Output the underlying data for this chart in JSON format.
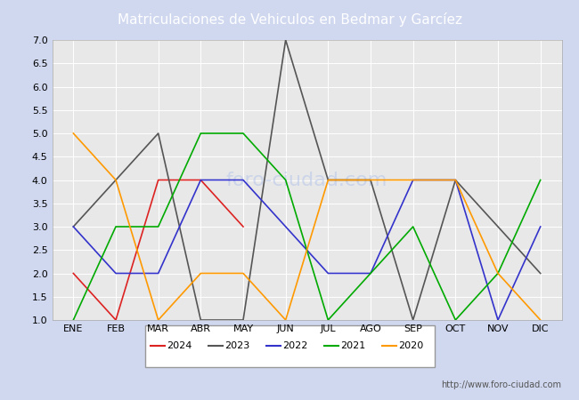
{
  "title": "Matriculaciones de Vehiculos en Bedmar y Garcíez",
  "header_bg": "#4f6fbe",
  "months": [
    "ENE",
    "FEB",
    "MAR",
    "ABR",
    "MAY",
    "JUN",
    "JUL",
    "AGO",
    "SEP",
    "OCT",
    "NOV",
    "DIC"
  ],
  "ylim": [
    1.0,
    7.0
  ],
  "yticks": [
    1.0,
    1.5,
    2.0,
    2.5,
    3.0,
    3.5,
    4.0,
    4.5,
    5.0,
    5.5,
    6.0,
    6.5,
    7.0
  ],
  "series": {
    "2024": {
      "color": "#dd2222",
      "data": [
        2,
        1,
        4,
        4,
        3,
        null,
        null,
        null,
        null,
        null,
        null,
        null
      ]
    },
    "2023": {
      "color": "#555555",
      "data": [
        3,
        4,
        5,
        1,
        1,
        7,
        4,
        4,
        1,
        4,
        3,
        2
      ]
    },
    "2022": {
      "color": "#3333cc",
      "data": [
        3,
        2,
        2,
        4,
        4,
        3,
        2,
        2,
        4,
        4,
        1,
        3
      ]
    },
    "2021": {
      "color": "#00aa00",
      "data": [
        1,
        3,
        3,
        5,
        5,
        4,
        1,
        2,
        3,
        1,
        2,
        4
      ]
    },
    "2020": {
      "color": "#ff9900",
      "data": [
        5,
        4,
        1,
        2,
        2,
        1,
        4,
        4,
        4,
        4,
        2,
        1
      ]
    }
  },
  "legend_order": [
    "2024",
    "2023",
    "2022",
    "2021",
    "2020"
  ],
  "bg_plot": "#e8e8e8",
  "grid_color": "#ffffff",
  "footer_url": "http://www.foro-ciudad.com",
  "watermark": "foro-ciudad.com"
}
